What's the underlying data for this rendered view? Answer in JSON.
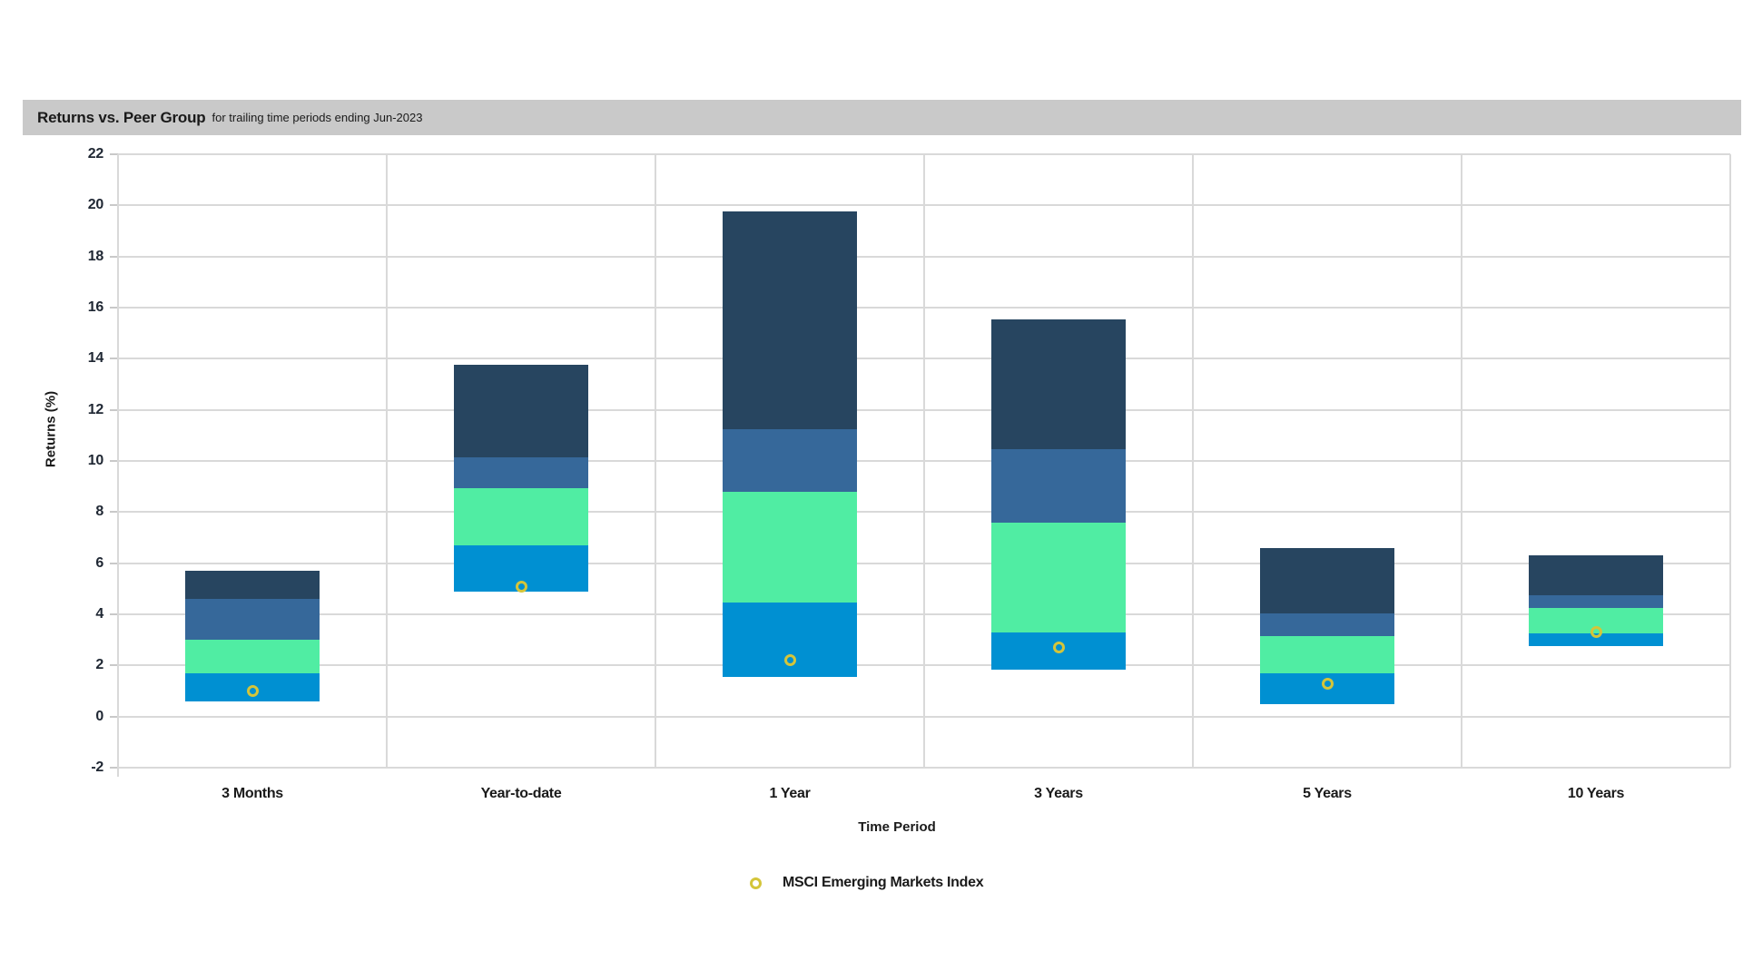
{
  "header": {
    "title": "Returns vs. Peer Group",
    "subtitle": "for trailing time periods ending Jun-2023"
  },
  "chart_data": {
    "type": "bar",
    "subtype": "floating-stacked-quartile-range-columns",
    "title": "Returns vs. Peer Group for trailing time periods ending Jun-2023",
    "xlabel": "Time Period",
    "ylabel": "Returns (%)",
    "ylim": [
      -2,
      22
    ],
    "y_ticks": [
      22,
      20,
      18,
      16,
      14,
      12,
      10,
      8,
      6,
      4,
      2,
      0,
      -2
    ],
    "grid": "horizontal gridlines at every 2 units plus vertical category separators",
    "legend_position": "bottom-center",
    "categories": [
      "3 Months",
      "Year-to-date",
      "1 Year",
      "3 Years",
      "5 Years",
      "10 Years"
    ],
    "points": [
      {
        "category": "3 Months",
        "low": 0.6,
        "q1": 1.7,
        "median": 3.0,
        "q3": 4.6,
        "high": 5.7,
        "index": 1.0
      },
      {
        "category": "Year-to-date",
        "low": 4.9,
        "q1": 6.7,
        "median": 8.95,
        "q3": 10.15,
        "high": 13.75,
        "index": 5.1
      },
      {
        "category": "1 Year",
        "low": 1.55,
        "q1": 4.45,
        "median": 8.8,
        "q3": 11.25,
        "high": 19.75,
        "index": 2.2
      },
      {
        "category": "3 Years",
        "low": 1.85,
        "q1": 3.3,
        "median": 7.6,
        "q3": 10.45,
        "high": 15.55,
        "index": 2.7
      },
      {
        "category": "5 Years",
        "low": 0.5,
        "q1": 1.7,
        "median": 3.15,
        "q3": 4.05,
        "high": 6.6,
        "index": 1.3
      },
      {
        "category": "10 Years",
        "low": 2.75,
        "q1": 3.25,
        "median": 4.25,
        "q3": 4.75,
        "high": 6.3,
        "index": 3.3
      }
    ],
    "bands": [
      {
        "name": "peer-band-bottom",
        "from": "low",
        "to": "q1",
        "color": "#0090d2"
      },
      {
        "name": "peer-band-lower-middle",
        "from": "q1",
        "to": "median",
        "color": "#50eda3"
      },
      {
        "name": "peer-band-upper-middle",
        "from": "median",
        "to": "q3",
        "color": "#36689a"
      },
      {
        "name": "peer-band-top",
        "from": "q3",
        "to": "high",
        "color": "#274560"
      }
    ],
    "marker_series": {
      "name": "MSCI Emerging Markets Index",
      "marker": "open-circle",
      "color": "#d4c53a",
      "values": [
        1.0,
        5.1,
        2.2,
        2.7,
        1.3,
        3.3
      ]
    }
  },
  "colors": {
    "header_bar": "#c9c9c9",
    "gridline": "#d9d9d9",
    "tick": "#c9c9c9",
    "text": "#1a1a1a",
    "background": "#ffffff"
  }
}
